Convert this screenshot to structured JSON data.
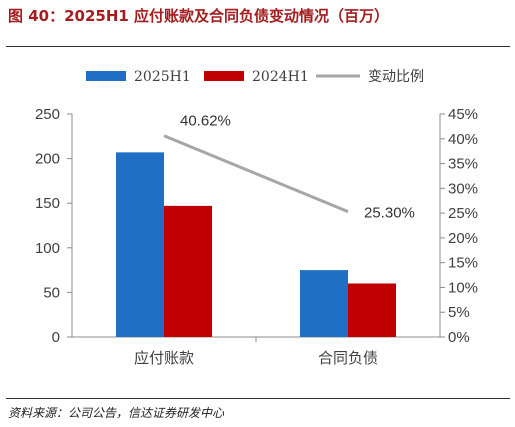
{
  "title": "图 40：2025H1 应付账款及合同负债变动情况（百万）",
  "source": "资料来源：公司公告，信达证券研发中心",
  "chart_data": {
    "type": "bar",
    "categories": [
      "应付账款",
      "合同负债"
    ],
    "series": [
      {
        "name": "2025H1",
        "values": [
          207,
          75
        ],
        "color": "#1f6fc5"
      },
      {
        "name": "2024H1",
        "values": [
          147,
          60
        ],
        "color": "#c00000"
      }
    ],
    "line_series": {
      "name": "变动比例",
      "values": [
        40.62,
        25.3
      ],
      "labels": [
        "40.62%",
        "25.30%"
      ],
      "color": "#a6a6a6"
    },
    "ylim": [
      0,
      250
    ],
    "yticks": [
      "0",
      "50",
      "100",
      "150",
      "200",
      "250"
    ],
    "y2lim": [
      0,
      45
    ],
    "y2ticks": [
      "0%",
      "5%",
      "10%",
      "15%",
      "20%",
      "25%",
      "30%",
      "35%",
      "40%",
      "45%"
    ],
    "legend_position": "top",
    "grid": false
  }
}
